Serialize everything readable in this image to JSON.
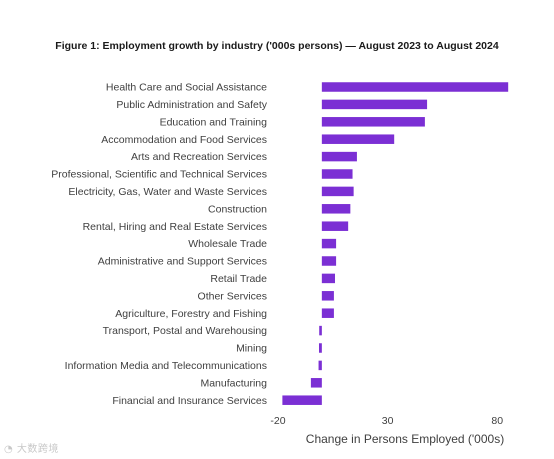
{
  "chart_data": {
    "type": "bar",
    "orientation": "horizontal",
    "title": "Figure 1: Employment growth by industry ('000s persons) — August 2023 to August 2024",
    "xlabel": "Change in Persons Employed ('000s)",
    "ylabel": "",
    "xlim": [
      -20,
      84
    ],
    "xticks": [
      "-20",
      "30",
      "80"
    ],
    "tick_values": [
      -20,
      30,
      80
    ],
    "grid": false,
    "legend": "none",
    "bar_color": "#7b2fd4",
    "categories": [
      "Health Care and Social Assistance",
      "Public Administration and Safety",
      "Education and Training",
      "Accommodation and Food Services",
      "Arts and Recreation Services",
      "Professional, Scientific and Technical Services",
      "Electricity, Gas, Water and Waste Services",
      "Construction",
      "Rental, Hiring and Real Estate Services",
      "Wholesale Trade",
      "Administrative and Support Services",
      "Retail Trade",
      "Other Services",
      "Agriculture, Forestry and Fishing",
      "Transport, Postal and Warehousing",
      "Mining",
      "Information Media and Telecommunications",
      "Manufacturing",
      "Financial and Insurance Services"
    ],
    "values": [
      85,
      48,
      47,
      33,
      16,
      14,
      14.5,
      13,
      12,
      6.5,
      6.5,
      6,
      5.5,
      5.5,
      -1.2,
      -1.3,
      -1.5,
      -5,
      -18
    ]
  },
  "watermark": "大数跨境"
}
